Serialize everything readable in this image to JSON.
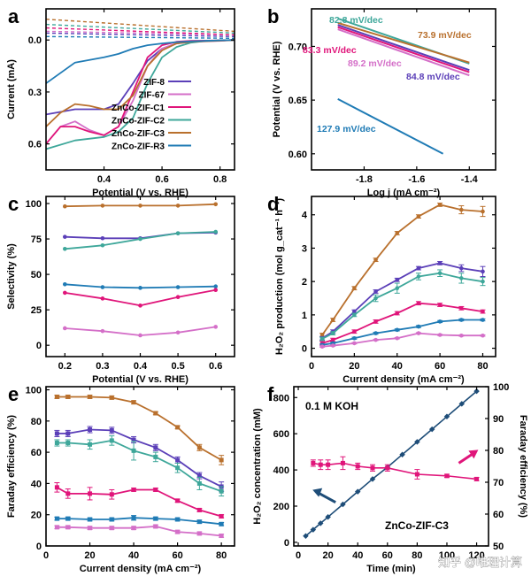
{
  "colors": {
    "purple": "#5b3fb8",
    "pink": "#d46fc8",
    "magenta": "#e0157a",
    "teal": "#3ea79a",
    "orange": "#b9702d",
    "blue": "#1f7bb5",
    "navy": "#1e4d78"
  },
  "watermark": "知乎 @唯理计算",
  "chart_data": [
    {
      "panel": "a",
      "type": "line",
      "xlabel": "Potential (V vs. RHE)",
      "ylabel": "Current (mA)",
      "xlim": [
        0.2,
        0.85
      ],
      "ylim": [
        -0.18,
        0.75
      ],
      "y_reversed": true,
      "xticks": [
        0.4,
        0.6,
        0.8
      ],
      "xticklabels": [
        "0.4",
        "0.6",
        "0.8"
      ],
      "yticks": [
        0.0,
        0.3,
        0.6
      ],
      "yticklabels": [
        "0.0",
        "0.3",
        "0.6"
      ],
      "legend": [
        "ZIF-8",
        "ZIF-67",
        "ZnCo-ZIF-C1",
        "ZnCo-ZIF-C2",
        "ZnCo-ZIF-C3",
        "ZnCo-ZIF-R3"
      ],
      "series": [
        {
          "name": "ZIF-8",
          "color": "purple",
          "x": [
            0.2,
            0.3,
            0.4,
            0.45,
            0.5,
            0.55,
            0.6,
            0.65,
            0.7,
            0.75,
            0.8,
            0.85
          ],
          "y": [
            0.43,
            0.4,
            0.4,
            0.37,
            0.25,
            0.12,
            0.05,
            0.02,
            0.01,
            0.005,
            0.003,
            0.0
          ]
        },
        {
          "name": "ZIF-67",
          "color": "pink",
          "x": [
            0.2,
            0.25,
            0.3,
            0.35,
            0.4,
            0.45,
            0.5,
            0.55,
            0.6,
            0.65,
            0.7,
            0.8,
            0.85
          ],
          "y": [
            0.6,
            0.5,
            0.47,
            0.52,
            0.55,
            0.5,
            0.35,
            0.15,
            0.05,
            0.02,
            0.01,
            0.005,
            0.0
          ]
        },
        {
          "name": "ZnCo-ZIF-C1",
          "color": "magenta",
          "x": [
            0.2,
            0.25,
            0.3,
            0.35,
            0.4,
            0.45,
            0.5,
            0.55,
            0.6,
            0.65,
            0.7,
            0.8,
            0.85
          ],
          "y": [
            0.6,
            0.5,
            0.5,
            0.53,
            0.55,
            0.5,
            0.3,
            0.1,
            0.03,
            0.01,
            0.005,
            0.002,
            0.0
          ]
        },
        {
          "name": "ZnCo-ZIF-C2",
          "color": "teal",
          "x": [
            0.2,
            0.3,
            0.4,
            0.45,
            0.5,
            0.55,
            0.6,
            0.65,
            0.7,
            0.75,
            0.8,
            0.85
          ],
          "y": [
            0.63,
            0.58,
            0.56,
            0.53,
            0.45,
            0.25,
            0.1,
            0.04,
            0.015,
            0.005,
            0.002,
            0.0
          ]
        },
        {
          "name": "ZnCo-ZIF-C3",
          "color": "orange",
          "x": [
            0.2,
            0.25,
            0.3,
            0.35,
            0.4,
            0.45,
            0.5,
            0.55,
            0.6,
            0.65,
            0.7,
            0.8,
            0.85
          ],
          "y": [
            0.5,
            0.42,
            0.37,
            0.38,
            0.4,
            0.4,
            0.32,
            0.15,
            0.06,
            0.02,
            0.01,
            0.004,
            0.0
          ]
        },
        {
          "name": "ZnCo-ZIF-R3",
          "color": "blue",
          "x": [
            0.2,
            0.3,
            0.4,
            0.45,
            0.5,
            0.55,
            0.6,
            0.65,
            0.7,
            0.75,
            0.8,
            0.85
          ],
          "y": [
            0.25,
            0.13,
            0.1,
            0.08,
            0.05,
            0.03,
            0.02,
            0.012,
            0.008,
            0.005,
            0.002,
            0.0
          ]
        },
        {
          "name": "ZIF-8 (ring)",
          "color": "purple",
          "dashed": true,
          "x": [
            0.2,
            0.85
          ],
          "y": [
            -0.04,
            -0.02
          ]
        },
        {
          "name": "ZIF-67 (ring)",
          "color": "pink",
          "dashed": true,
          "x": [
            0.2,
            0.85
          ],
          "y": [
            -0.05,
            -0.03
          ]
        },
        {
          "name": "ZnCo-ZIF-C1 (ring)",
          "color": "magenta",
          "dashed": true,
          "x": [
            0.2,
            0.85
          ],
          "y": [
            -0.07,
            -0.03
          ]
        },
        {
          "name": "ZnCo-ZIF-C2 (ring)",
          "color": "teal",
          "dashed": true,
          "x": [
            0.2,
            0.85
          ],
          "y": [
            -0.09,
            -0.04
          ]
        },
        {
          "name": "ZnCo-ZIF-C3 (ring)",
          "color": "orange",
          "dashed": true,
          "x": [
            0.2,
            0.85
          ],
          "y": [
            -0.12,
            -0.05
          ]
        },
        {
          "name": "ZnCo-ZIF-R3 (ring)",
          "color": "blue",
          "dashed": true,
          "x": [
            0.2,
            0.85
          ],
          "y": [
            -0.02,
            -0.01
          ]
        }
      ]
    },
    {
      "panel": "b",
      "type": "line",
      "xlabel": "Log j (mA cm⁻²)",
      "ylabel": "Potential (V vs. RHE)",
      "xlim": [
        -2.0,
        -1.3
      ],
      "ylim": [
        0.585,
        0.735
      ],
      "xticks": [
        -1.8,
        -1.6,
        -1.4
      ],
      "xticklabels": [
        "-1.8",
        "-1.6",
        "-1.4"
      ],
      "yticks": [
        0.6,
        0.65,
        0.7
      ],
      "yticklabels": [
        "0.60",
        "0.65",
        "0.70"
      ],
      "series": [
        {
          "name": "82.8 mV/dec",
          "color": "teal",
          "x": [
            -1.9,
            -1.4
          ],
          "y": [
            0.726,
            0.684
          ]
        },
        {
          "name": "73.9 mV/dec",
          "color": "orange",
          "x": [
            -1.9,
            -1.4
          ],
          "y": [
            0.722,
            0.685
          ]
        },
        {
          "name": "83.3 mV/dec",
          "color": "magenta",
          "x": [
            -1.9,
            -1.4
          ],
          "y": [
            0.718,
            0.676
          ]
        },
        {
          "name": "89.2 mV/dec",
          "color": "pink",
          "x": [
            -1.9,
            -1.4
          ],
          "y": [
            0.716,
            0.673
          ]
        },
        {
          "name": "84.8 mV/dec",
          "color": "purple",
          "x": [
            -1.9,
            -1.4
          ],
          "y": [
            0.72,
            0.678
          ]
        },
        {
          "name": "127.9 mV/dec",
          "color": "blue",
          "x": [
            -1.9,
            -1.5
          ],
          "y": [
            0.651,
            0.6
          ]
        }
      ],
      "annotations": [
        "82.8 mV/dec",
        "73.9 mV/dec",
        "83.3 mV/dec",
        "89.2 mV/dec",
        "84.8 mV/dec",
        "127.9 mV/dec"
      ]
    },
    {
      "panel": "c",
      "type": "line",
      "xlabel": "Potential (V vs. RHE)",
      "ylabel": "Selectivity (%)",
      "xlim": [
        0.15,
        0.65
      ],
      "ylim": [
        -8,
        105
      ],
      "xticks": [
        0.2,
        0.3,
        0.4,
        0.5,
        0.6
      ],
      "xticklabels": [
        "0.2",
        "0.3",
        "0.4",
        "0.5",
        "0.6"
      ],
      "yticks": [
        0,
        25,
        50,
        75,
        100
      ],
      "yticklabels": [
        "0",
        "25",
        "50",
        "75",
        "100"
      ],
      "x": [
        0.2,
        0.3,
        0.4,
        0.5,
        0.6
      ],
      "series": [
        {
          "name": "ZnCo-ZIF-C3",
          "color": "orange",
          "values": [
            98,
            98.5,
            98.5,
            98.5,
            99.5
          ]
        },
        {
          "name": "ZIF-8",
          "color": "purple",
          "values": [
            76.5,
            75.5,
            75.5,
            79,
            79.5
          ]
        },
        {
          "name": "ZnCo-ZIF-C2",
          "color": "teal",
          "values": [
            68,
            70.5,
            75,
            79,
            80
          ]
        },
        {
          "name": "ZnCo-ZIF-R3",
          "color": "blue",
          "values": [
            43,
            41,
            40.5,
            41,
            41.5
          ]
        },
        {
          "name": "ZnCo-ZIF-C1",
          "color": "magenta",
          "values": [
            37,
            33,
            28,
            34,
            39
          ]
        },
        {
          "name": "ZIF-67",
          "color": "pink",
          "values": [
            12,
            10,
            7,
            9,
            13
          ]
        }
      ]
    },
    {
      "panel": "d",
      "type": "line",
      "xlabel": "Current density (mA cm⁻²)",
      "ylabel": "H₂O₂ production (mol g_cat⁻¹ h⁻¹)",
      "xlim": [
        0,
        86
      ],
      "ylim": [
        -0.25,
        4.55
      ],
      "xticks": [
        0,
        20,
        40,
        60,
        80
      ],
      "xticklabels": [
        "0",
        "20",
        "40",
        "60",
        "80"
      ],
      "yticks": [
        0,
        1,
        2,
        3,
        4
      ],
      "yticklabels": [
        "0",
        "1",
        "2",
        "3",
        "4"
      ],
      "x": [
        5,
        10,
        20,
        30,
        40,
        50,
        60,
        70,
        80
      ],
      "series": [
        {
          "name": "ZnCo-ZIF-C3",
          "color": "orange",
          "values": [
            0.4,
            0.85,
            1.8,
            2.65,
            3.45,
            3.95,
            4.3,
            4.15,
            4.1
          ],
          "err": [
            0.05,
            0.05,
            0.05,
            0.05,
            0.05,
            0.05,
            0.05,
            0.12,
            0.15
          ]
        },
        {
          "name": "ZIF-8",
          "color": "purple",
          "values": [
            0.3,
            0.5,
            1.1,
            1.7,
            2.05,
            2.4,
            2.55,
            2.4,
            2.3
          ],
          "err": [
            0.05,
            0.05,
            0.05,
            0.05,
            0.05,
            0.05,
            0.05,
            0.1,
            0.15
          ]
        },
        {
          "name": "ZnCo-ZIF-C2",
          "color": "teal",
          "values": [
            0.28,
            0.45,
            1.0,
            1.5,
            1.8,
            2.15,
            2.25,
            2.1,
            2.0
          ],
          "err": [
            0.05,
            0.05,
            0.05,
            0.1,
            0.15,
            0.1,
            0.1,
            0.15,
            0.12
          ]
        },
        {
          "name": "ZnCo-ZIF-C1",
          "color": "magenta",
          "values": [
            0.15,
            0.25,
            0.5,
            0.8,
            1.05,
            1.35,
            1.3,
            1.2,
            1.1
          ],
          "err": [
            0.05,
            0.05,
            0.05,
            0.05,
            0.05,
            0.05,
            0.05,
            0.05,
            0.05
          ]
        },
        {
          "name": "ZnCo-ZIF-R3",
          "color": "blue",
          "values": [
            0.1,
            0.15,
            0.3,
            0.45,
            0.55,
            0.65,
            0.8,
            0.85,
            0.85
          ],
          "err": [
            0.03,
            0.03,
            0.03,
            0.03,
            0.03,
            0.03,
            0.03,
            0.03,
            0.03
          ]
        },
        {
          "name": "ZIF-67",
          "color": "pink",
          "values": [
            0.05,
            0.08,
            0.15,
            0.25,
            0.3,
            0.45,
            0.4,
            0.38,
            0.38
          ],
          "err": [
            0.02,
            0.02,
            0.02,
            0.02,
            0.02,
            0.02,
            0.02,
            0.02,
            0.02
          ]
        }
      ]
    },
    {
      "panel": "e",
      "type": "line",
      "xlabel": "Current density (mA cm⁻²)",
      "ylabel": "Faraday efficiency (%)",
      "xlim": [
        0,
        86
      ],
      "ylim": [
        0,
        102
      ],
      "xticks": [
        0,
        20,
        40,
        60,
        80
      ],
      "xticklabels": [
        "0",
        "20",
        "40",
        "60",
        "80"
      ],
      "yticks": [
        0,
        20,
        40,
        60,
        80,
        100
      ],
      "yticklabels": [
        "0",
        "20",
        "40",
        "60",
        "80",
        "100"
      ],
      "x": [
        5,
        10,
        20,
        30,
        40,
        50,
        60,
        70,
        80
      ],
      "series": [
        {
          "name": "ZnCo-ZIF-C3",
          "color": "orange",
          "values": [
            95.5,
            95.5,
            95.5,
            95,
            92,
            85,
            76,
            63,
            55
          ],
          "err": [
            1,
            1,
            1,
            1,
            1,
            1,
            1,
            2,
            3
          ]
        },
        {
          "name": "ZIF-8",
          "color": "purple",
          "values": [
            72,
            72,
            74.5,
            74,
            68,
            63,
            55,
            45,
            38
          ],
          "err": [
            2,
            2,
            2,
            2,
            2,
            2,
            2,
            2,
            3
          ]
        },
        {
          "name": "ZnCo-ZIF-C2",
          "color": "teal",
          "values": [
            66,
            66,
            65,
            67.5,
            61,
            57,
            50,
            40,
            35
          ],
          "err": [
            2,
            2,
            3,
            3,
            6,
            3,
            3,
            4,
            3
          ]
        },
        {
          "name": "ZnCo-ZIF-C1",
          "color": "magenta",
          "values": [
            37.5,
            33.5,
            33.5,
            33,
            36,
            36,
            29,
            23,
            19
          ],
          "err": [
            3,
            3,
            4,
            3,
            1,
            1,
            1,
            1,
            1
          ]
        },
        {
          "name": "ZnCo-ZIF-R3",
          "color": "blue",
          "values": [
            17.5,
            17.5,
            17,
            17,
            18,
            17.5,
            17,
            15.5,
            14
          ],
          "err": [
            1,
            1,
            1,
            1,
            1.5,
            1,
            1,
            1,
            1
          ]
        },
        {
          "name": "ZIF-67",
          "color": "pink",
          "values": [
            12,
            12,
            11.5,
            11.5,
            11.5,
            12.5,
            9,
            8,
            6.5
          ],
          "err": [
            1,
            1,
            1,
            1,
            1,
            1,
            1,
            1,
            1
          ]
        }
      ]
    },
    {
      "panel": "f",
      "type": "line",
      "xlabel": "Time (min)",
      "ylabel": "H₂O₂ concentration (mM)",
      "y2label": "Faraday efficiency (%)",
      "xlim": [
        -3,
        128
      ],
      "ylim": [
        -20,
        860
      ],
      "y2lim": [
        50,
        100
      ],
      "xticks": [
        0,
        20,
        40,
        60,
        80,
        100,
        120
      ],
      "xticklabels": [
        "0",
        "20",
        "40",
        "60",
        "80",
        "100",
        "120"
      ],
      "yticks": [
        0,
        200,
        400,
        600,
        800
      ],
      "yticklabels": [
        "0",
        "200",
        "400",
        "600",
        "800"
      ],
      "y2ticks": [
        50,
        60,
        70,
        80,
        90,
        100
      ],
      "y2ticklabels": [
        "50",
        "60",
        "70",
        "80",
        "90",
        "100"
      ],
      "annotations": [
        "0.1 M KOH",
        "ZnCo-ZIF-C3"
      ],
      "series": [
        {
          "name": "H2O2 concentration",
          "axis": "left",
          "color": "navy",
          "x": [
            5,
            10,
            15,
            20,
            30,
            40,
            50,
            60,
            70,
            80,
            90,
            100,
            110,
            120
          ],
          "values": [
            35,
            70,
            105,
            140,
            210,
            280,
            350,
            415,
            485,
            555,
            625,
            695,
            765,
            835
          ]
        },
        {
          "name": "Faraday efficiency",
          "axis": "right",
          "color": "magenta",
          "x": [
            10,
            15,
            20,
            30,
            40,
            50,
            60,
            80,
            100,
            120
          ],
          "values": [
            76,
            75.5,
            75.5,
            76,
            75,
            74.5,
            74.5,
            72.5,
            72,
            71
          ],
          "err": [
            1,
            1.5,
            1.5,
            2,
            1,
            1,
            1,
            1.5,
            0.5,
            0.5
          ]
        }
      ]
    }
  ]
}
